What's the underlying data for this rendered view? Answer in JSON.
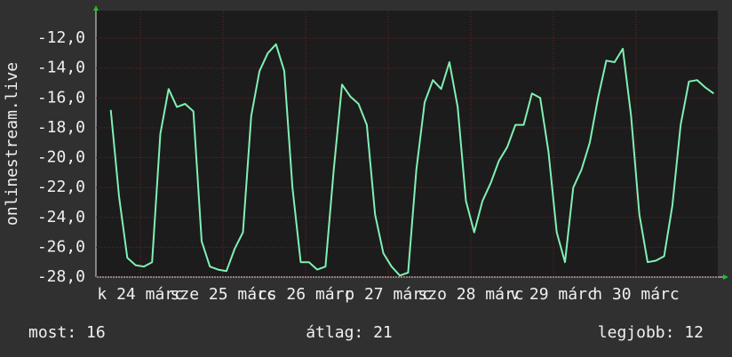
{
  "chart_data": {
    "type": "line",
    "y_label": "onlinestream.live",
    "color": "#80f0b4",
    "grid": true,
    "xlim": [
      23.96,
      31.49
    ],
    "ylim": [
      -28,
      -10.15
    ],
    "xticks": [
      {
        "value": 24.5,
        "label": "k 24 márc"
      },
      {
        "value": 25.5,
        "label": "sze 25 márc"
      },
      {
        "value": 26.5,
        "label": "cs 26 márc"
      },
      {
        "value": 27.5,
        "label": "p 27 márc"
      },
      {
        "value": 28.5,
        "label": "szo 28 márc"
      },
      {
        "value": 29.5,
        "label": "v 29 márc"
      },
      {
        "value": 30.5,
        "label": "h 30 márc"
      }
    ],
    "yticks": [
      {
        "value": -28,
        "label": "-28,0"
      },
      {
        "value": -26,
        "label": "-26,0"
      },
      {
        "value": -24,
        "label": "-24,0"
      },
      {
        "value": -22,
        "label": "-22,0"
      },
      {
        "value": -20,
        "label": "-20,0"
      },
      {
        "value": -18,
        "label": "-18,0"
      },
      {
        "value": -16,
        "label": "-16,0"
      },
      {
        "value": -14,
        "label": "-14,0"
      },
      {
        "value": -12,
        "label": "-12,0"
      }
    ],
    "x": [
      24.14,
      24.24,
      24.34,
      24.44,
      24.54,
      24.64,
      24.74,
      24.84,
      24.94,
      25.04,
      25.14,
      25.24,
      25.34,
      25.44,
      25.54,
      25.64,
      25.74,
      25.84,
      25.94,
      26.04,
      26.14,
      26.24,
      26.34,
      26.44,
      26.54,
      26.64,
      26.74,
      26.84,
      26.94,
      27.04,
      27.14,
      27.24,
      27.34,
      27.44,
      27.54,
      27.64,
      27.74,
      27.84,
      27.94,
      28.04,
      28.14,
      28.24,
      28.34,
      28.44,
      28.54,
      28.64,
      28.74,
      28.84,
      28.94,
      29.04,
      29.14,
      29.24,
      29.34,
      29.44,
      29.54,
      29.64,
      29.74,
      29.84,
      29.94,
      30.04,
      30.14,
      30.24,
      30.34,
      30.44,
      30.54,
      30.64,
      30.74,
      30.84,
      30.94,
      31.04,
      31.14,
      31.24,
      31.34,
      31.44
    ],
    "values": [
      -16.8,
      -22.6,
      -26.7,
      -27.2,
      -27.3,
      -27.0,
      -18.4,
      -15.4,
      -16.6,
      -16.4,
      -16.9,
      -25.6,
      -27.3,
      -27.5,
      -27.6,
      -26.1,
      -25.0,
      -17.2,
      -14.2,
      -13.0,
      -12.4,
      -14.2,
      -22.0,
      -27.0,
      -27.0,
      -27.5,
      -27.3,
      -20.8,
      -15.1,
      -15.9,
      -16.4,
      -17.8,
      -23.8,
      -26.4,
      -27.3,
      -27.9,
      -27.7,
      -20.8,
      -16.3,
      -14.8,
      -15.4,
      -13.6,
      -16.6,
      -22.9,
      -25.0,
      -22.9,
      -21.7,
      -20.2,
      -19.3,
      -17.8,
      -17.8,
      -15.7,
      -16.0,
      -19.6,
      -25.0,
      -27.0,
      -22.0,
      -20.8,
      -19.0,
      -16.0,
      -13.5,
      -13.6,
      -12.7,
      -17.2,
      -23.8,
      -27.0,
      -26.9,
      -26.6,
      -23.2,
      -17.8,
      -14.9,
      -14.8,
      -15.3,
      -15.7
    ]
  },
  "stats": [
    "most: 16",
    "átlag: 21",
    "legjobb: 12"
  ]
}
